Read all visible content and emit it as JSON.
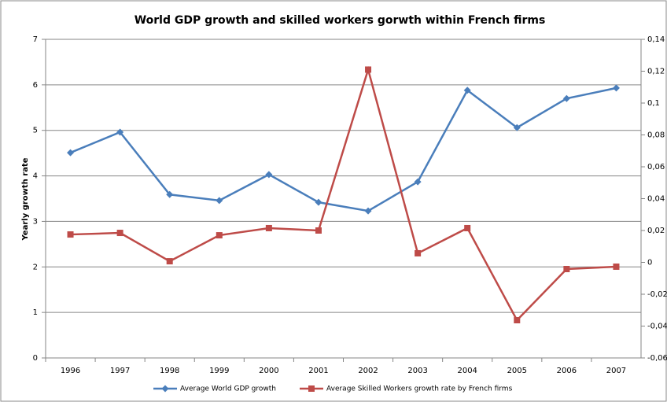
{
  "chart_data": {
    "type": "line",
    "title": "World GDP growth and skilled workers gorwth within French firms",
    "y_label": "Yearly growth rate",
    "categories": [
      "1996",
      "1997",
      "1998",
      "1999",
      "2000",
      "2001",
      "2002",
      "2003",
      "2004",
      "2005",
      "2006",
      "2007"
    ],
    "series": [
      {
        "name": "Average World GDP growth",
        "color": "#4a7ebb",
        "marker": "diamond",
        "values": [
          4.51,
          4.96,
          3.59,
          3.46,
          4.03,
          3.42,
          3.23,
          3.87,
          5.88,
          5.06,
          5.7,
          5.93
        ]
      },
      {
        "name": "Average Skilled Workers growth rate  by French firms",
        "color": "#be4b48",
        "marker": "square",
        "axis": "y2",
        "values": [
          0.0175,
          0.0185,
          0.0007,
          0.017,
          0.0215,
          0.02,
          0.121,
          0.0057,
          0.0215,
          -0.0363,
          -0.0042,
          -0.0027
        ]
      }
    ],
    "ylim": [
      0,
      7
    ],
    "yticks": [
      0,
      1,
      2,
      3,
      4,
      5,
      6,
      7
    ],
    "y2lim": [
      -0.06,
      0.14
    ],
    "y2ticks": [
      {
        "value": -0.06,
        "label": "-0,06"
      },
      {
        "value": -0.04,
        "label": "-0,04"
      },
      {
        "value": -0.02,
        "label": "-0,02"
      },
      0,
      {
        "value": 0.02,
        "label": "0,02"
      },
      {
        "value": 0.04,
        "label": "0,04"
      },
      {
        "value": 0.06,
        "label": "0,06"
      },
      {
        "value": 0.08,
        "label": "0,08"
      },
      {
        "value": 0.1,
        "label": "0,1"
      },
      {
        "value": 0.12,
        "label": "0,12"
      },
      {
        "value": 0.14,
        "label": "0,14"
      }
    ],
    "grid": true,
    "legend": "bottom"
  }
}
